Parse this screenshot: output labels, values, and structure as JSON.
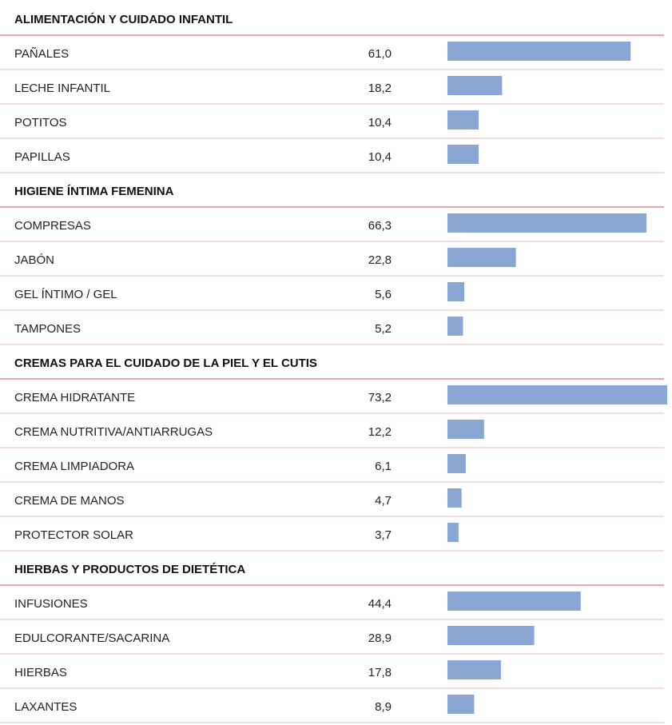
{
  "chart_data": {
    "type": "bar",
    "color": "#8aa7d3",
    "groups": [
      {
        "name": "ALIMENTACIÓN Y CUIDADO INFANTIL",
        "categories": [
          "PAÑALES",
          "LECHE INFANTIL",
          "POTITOS",
          "PAPILLAS"
        ],
        "values": [
          61.0,
          18.2,
          10.4,
          10.4
        ],
        "value_labels": [
          "61,0",
          "18,2",
          "10,4",
          "10,4"
        ]
      },
      {
        "name": "HIGIENE ÍNTIMA FEMENINA",
        "categories": [
          "COMPRESAS",
          "JABÓN",
          "GEL ÍNTIMO / GEL",
          "TAMPONES"
        ],
        "values": [
          66.3,
          22.8,
          5.6,
          5.2
        ],
        "value_labels": [
          "66,3",
          "22,8",
          "5,6",
          "5,2"
        ]
      },
      {
        "name": "CREMAS PARA EL CUIDADO DE LA PIEL Y EL CUTIS",
        "categories": [
          "CREMA HIDRATANTE",
          "CREMA NUTRITIVA/ANTIARRUGAS",
          "CREMA LIMPIADORA",
          "CREMA DE MANOS",
          "PROTECTOR SOLAR"
        ],
        "values": [
          73.2,
          12.2,
          6.1,
          4.7,
          3.7
        ],
        "value_labels": [
          "73,2",
          "12,2",
          "6,1",
          "4,7",
          "3,7"
        ]
      },
      {
        "name": "HIERBAS Y PRODUCTOS DE DIETÉTICA",
        "categories": [
          "INFUSIONES",
          "EDULCORANTE/SACARINA",
          "HIERBAS",
          "LAXANTES"
        ],
        "values": [
          44.4,
          28.9,
          17.8,
          8.9
        ],
        "value_labels": [
          "44,4",
          "28,9",
          "17,8",
          "8,9"
        ]
      }
    ]
  }
}
